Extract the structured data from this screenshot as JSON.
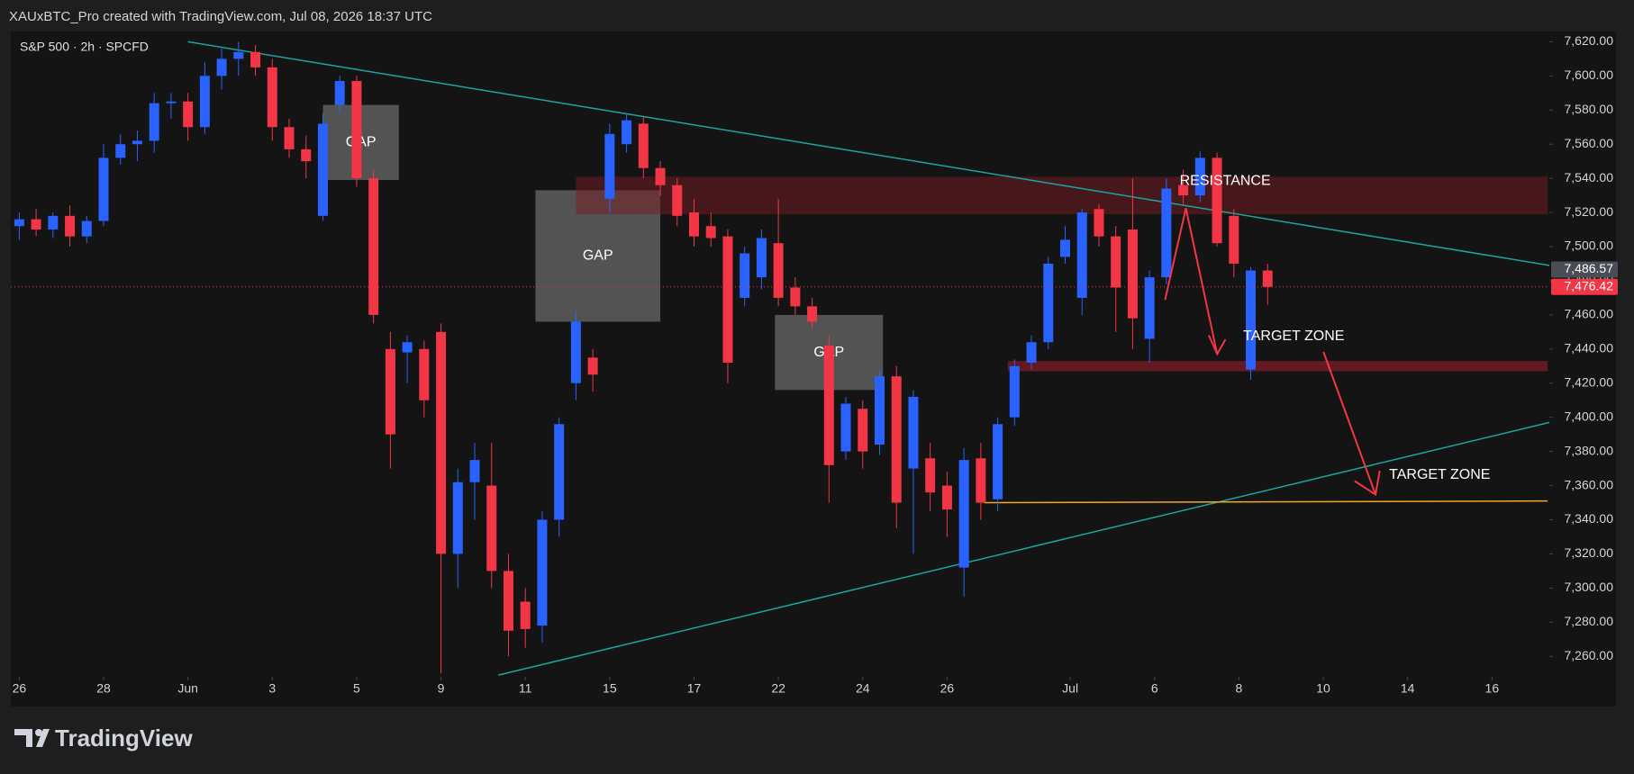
{
  "header": "XAUxBTC_Pro created with TradingView.com, Jul 08, 2026 18:37 UTC",
  "brand": "TradingView",
  "chart_data": {
    "type": "candlestick",
    "title": "S&P 500 · 2h · SPCFD",
    "up_color": "#2962ff",
    "down_color": "#f23645",
    "ohlc": [
      [
        7512,
        7520,
        7504,
        7516
      ],
      [
        7516,
        7522,
        7506,
        7510
      ],
      [
        7510,
        7520,
        7505,
        7518
      ],
      [
        7518,
        7524,
        7500,
        7506
      ],
      [
        7506,
        7518,
        7502,
        7515
      ],
      [
        7515,
        7560,
        7512,
        7552
      ],
      [
        7552,
        7566,
        7548,
        7560
      ],
      [
        7560,
        7568,
        7550,
        7562
      ],
      [
        7562,
        7590,
        7555,
        7584
      ],
      [
        7584,
        7590,
        7575,
        7585
      ],
      [
        7585,
        7590,
        7562,
        7570
      ],
      [
        7570,
        7608,
        7566,
        7600
      ],
      [
        7600,
        7616,
        7592,
        7610
      ],
      [
        7610,
        7620,
        7600,
        7614
      ],
      [
        7614,
        7618,
        7600,
        7605
      ],
      [
        7605,
        7610,
        7562,
        7570
      ],
      [
        7570,
        7575,
        7552,
        7557
      ],
      [
        7557,
        7565,
        7540,
        7550
      ],
      [
        7518,
        7578,
        7515,
        7572
      ],
      [
        7583,
        7600,
        7578,
        7597
      ],
      [
        7597,
        7600,
        7535,
        7540
      ],
      [
        7540,
        7545,
        7455,
        7460
      ],
      [
        7440,
        7450,
        7370,
        7390
      ],
      [
        7438,
        7448,
        7420,
        7444
      ],
      [
        7440,
        7445,
        7400,
        7410
      ],
      [
        7450,
        7455,
        7250,
        7320
      ],
      [
        7320,
        7370,
        7300,
        7362
      ],
      [
        7362,
        7385,
        7340,
        7375
      ],
      [
        7360,
        7385,
        7300,
        7310
      ],
      [
        7310,
        7320,
        7260,
        7275
      ],
      [
        7292,
        7300,
        7265,
        7276
      ],
      [
        7278,
        7345,
        7268,
        7340
      ],
      [
        7340,
        7400,
        7330,
        7396
      ],
      [
        7420,
        7462,
        7410,
        7456
      ],
      [
        7435,
        7440,
        7415,
        7425
      ],
      [
        7528,
        7572,
        7520,
        7566
      ],
      [
        7560,
        7578,
        7555,
        7574
      ],
      [
        7572,
        7576,
        7540,
        7546
      ],
      [
        7546,
        7550,
        7530,
        7536
      ],
      [
        7536,
        7540,
        7512,
        7518
      ],
      [
        7520,
        7528,
        7500,
        7506
      ],
      [
        7512,
        7520,
        7500,
        7505
      ],
      [
        7506,
        7510,
        7420,
        7432
      ],
      [
        7470,
        7500,
        7465,
        7496
      ],
      [
        7482,
        7510,
        7475,
        7505
      ],
      [
        7502,
        7528,
        7465,
        7470
      ],
      [
        7476,
        7482,
        7460,
        7465
      ],
      [
        7465,
        7470,
        7452,
        7456
      ],
      [
        7442,
        7448,
        7350,
        7372
      ],
      [
        7380,
        7412,
        7375,
        7408
      ],
      [
        7405,
        7410,
        7370,
        7380
      ],
      [
        7384,
        7428,
        7378,
        7424
      ],
      [
        7424,
        7430,
        7335,
        7350
      ],
      [
        7370,
        7416,
        7320,
        7412
      ],
      [
        7376,
        7385,
        7345,
        7356
      ],
      [
        7360,
        7368,
        7330,
        7346
      ],
      [
        7312,
        7382,
        7295,
        7375
      ],
      [
        7376,
        7385,
        7340,
        7350
      ],
      [
        7352,
        7400,
        7345,
        7396
      ],
      [
        7400,
        7434,
        7395,
        7430
      ],
      [
        7432,
        7448,
        7428,
        7444
      ],
      [
        7444,
        7494,
        7440,
        7490
      ],
      [
        7494,
        7512,
        7490,
        7504
      ],
      [
        7470,
        7522,
        7460,
        7520
      ],
      [
        7522,
        7525,
        7500,
        7506
      ],
      [
        7506,
        7512,
        7450,
        7476
      ],
      [
        7510,
        7540,
        7440,
        7458
      ],
      [
        7446,
        7486,
        7432,
        7482
      ],
      [
        7482,
        7540,
        7478,
        7534
      ],
      [
        7536,
        7545,
        7525,
        7530
      ],
      [
        7530,
        7556,
        7526,
        7552
      ],
      [
        7552,
        7555,
        7500,
        7502
      ],
      [
        7518,
        7522,
        7482,
        7490
      ],
      [
        7428,
        7488,
        7422,
        7486
      ],
      [
        7486,
        7490,
        7466,
        7476.42
      ]
    ],
    "xlim": [
      -0.5,
      90.7
    ],
    "xticks": [
      {
        "value": 0,
        "label": "26"
      },
      {
        "value": 5,
        "label": "28"
      },
      {
        "value": 10,
        "label": "Jun"
      },
      {
        "value": 15,
        "label": "3"
      },
      {
        "value": 20,
        "label": "5"
      },
      {
        "value": 25,
        "label": "9"
      },
      {
        "value": 30,
        "label": "11"
      },
      {
        "value": 35,
        "label": "15"
      },
      {
        "value": 40,
        "label": "17"
      },
      {
        "value": 45,
        "label": "22"
      },
      {
        "value": 50,
        "label": "24"
      },
      {
        "value": 55,
        "label": "26"
      },
      {
        "value": 62.3,
        "label": "Jul"
      },
      {
        "value": 67.3,
        "label": "6"
      },
      {
        "value": 72.3,
        "label": "8"
      },
      {
        "value": 77.3,
        "label": "10"
      },
      {
        "value": 82.3,
        "label": "14"
      },
      {
        "value": 87.3,
        "label": "16"
      }
    ],
    "ylim": [
      7248,
      7626
    ],
    "yticks": [
      {
        "value": 7260,
        "label": "7,260.00"
      },
      {
        "value": 7280,
        "label": "7,280.00"
      },
      {
        "value": 7300,
        "label": "7,300.00"
      },
      {
        "value": 7320,
        "label": "7,320.00"
      },
      {
        "value": 7340,
        "label": "7,340.00"
      },
      {
        "value": 7360,
        "label": "7,360.00"
      },
      {
        "value": 7380,
        "label": "7,380.00"
      },
      {
        "value": 7400,
        "label": "7,400.00"
      },
      {
        "value": 7420,
        "label": "7,420.00"
      },
      {
        "value": 7440,
        "label": "7,440.00"
      },
      {
        "value": 7460,
        "label": "7,460.00"
      },
      {
        "value": 7480,
        "label": "7,480.00"
      },
      {
        "value": 7500,
        "label": "7,500.00"
      },
      {
        "value": 7520,
        "label": "7,520.00"
      },
      {
        "value": 7540,
        "label": "7,540.00"
      },
      {
        "value": 7560,
        "label": "7,560.00"
      },
      {
        "value": 7580,
        "label": "7,580.00"
      },
      {
        "value": 7600,
        "label": "7,600.00"
      },
      {
        "value": 7620,
        "label": "7,620.00"
      }
    ],
    "price_lines": [
      {
        "value": 7486.57,
        "label": "7,486.57",
        "color": "#4a4d55"
      },
      {
        "value": 7476.42,
        "label": "7,476.42",
        "color": "#f23645"
      }
    ],
    "zones": [
      {
        "label": "GAP",
        "x": [
          18,
          22.5
        ],
        "y": [
          7539,
          7583
        ],
        "color": "rgba(125,125,125,0.6)"
      },
      {
        "label": "GAP",
        "x": [
          30.6,
          38
        ],
        "y": [
          7456,
          7533
        ],
        "color": "rgba(125,125,125,0.6)"
      },
      {
        "label": "GAP",
        "x": [
          44.8,
          51.2
        ],
        "y": [
          7416,
          7460
        ],
        "color": "rgba(125,125,125,0.6)"
      },
      {
        "x": [
          33,
          90.6
        ],
        "y": [
          7519,
          7541
        ],
        "color": "rgba(120,28,36,0.5)"
      },
      {
        "x": [
          58.6,
          90.6
        ],
        "y": [
          7427,
          7433
        ],
        "color": "rgba(150,30,40,0.6)"
      }
    ],
    "trend_lines": [
      {
        "x": [
          10,
          90.7
        ],
        "y": [
          7620,
          7489
        ],
        "color": "#1aa6a0"
      },
      {
        "x": [
          28.4,
          90.7
        ],
        "y": [
          7249,
          7397
        ],
        "color": "#1aa6a0"
      },
      {
        "x": [
          57.2,
          90.6
        ],
        "y": [
          7350,
          7351
        ],
        "color": "#f5a623"
      }
    ],
    "annotations": [
      "RESISTANCE",
      "TARGET ZONE",
      "TARGET ZONE"
    ]
  }
}
